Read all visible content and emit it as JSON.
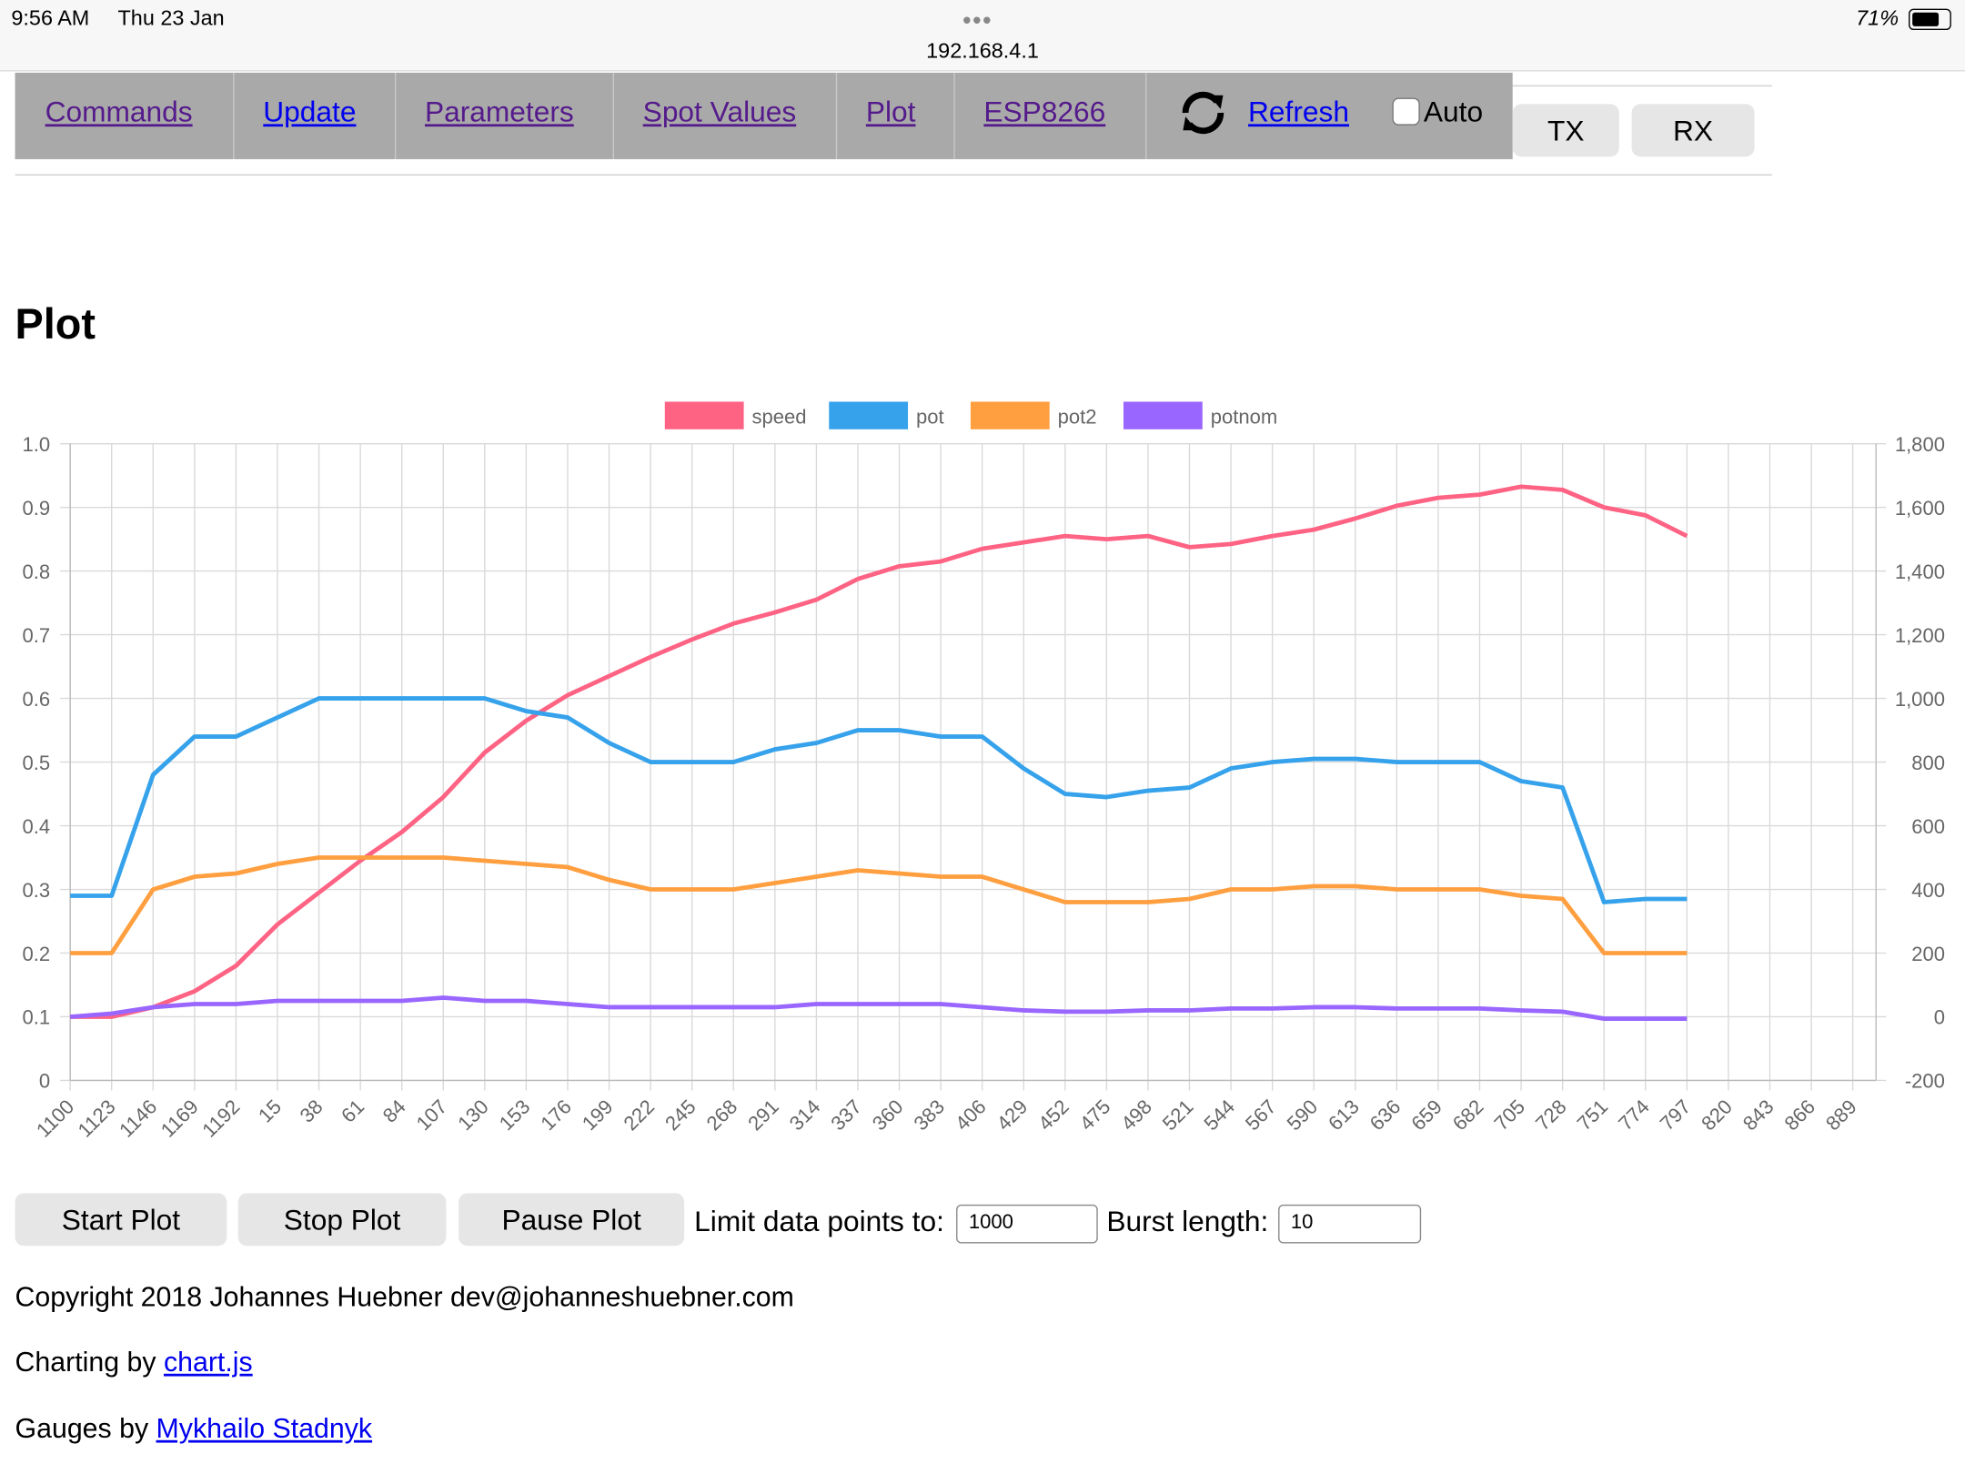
{
  "status_bar": {
    "time": "9:56 AM",
    "date": "Thu 23 Jan",
    "url": "192.168.4.1",
    "battery": "71%"
  },
  "nav": {
    "items": [
      "Commands",
      "Update",
      "Parameters",
      "Spot Values",
      "Plot",
      "ESP8266"
    ],
    "refresh": "Refresh",
    "auto": "Auto",
    "tx": "TX",
    "rx": "RX"
  },
  "heading": "Plot",
  "chart_data": {
    "type": "line",
    "categories": [
      "1100",
      "1123",
      "1146",
      "1169",
      "1192",
      "15",
      "38",
      "61",
      "84",
      "107",
      "130",
      "153",
      "176",
      "199",
      "222",
      "245",
      "268",
      "291",
      "314",
      "337",
      "360",
      "383",
      "406",
      "429",
      "452",
      "475",
      "498",
      "521",
      "544",
      "567",
      "590",
      "613",
      "636",
      "659",
      "682",
      "705",
      "728",
      "751",
      "774",
      "797",
      "820",
      "843",
      "866",
      "889"
    ],
    "series": [
      {
        "name": "speed",
        "color": "#ff6384",
        "axis": "y2",
        "values": [
          0,
          0,
          30,
          80,
          160,
          290,
          390,
          490,
          580,
          690,
          830,
          930,
          1010,
          1070,
          1130,
          1185,
          1235,
          1270,
          1310,
          1375,
          1415,
          1430,
          1470,
          1490,
          1510,
          1500,
          1510,
          1475,
          1485,
          1510,
          1530,
          1565,
          1605,
          1630,
          1640,
          1665,
          1655,
          1600,
          1575,
          1510,
          null,
          null,
          null,
          null
        ]
      },
      {
        "name": "pot",
        "color": "#36a2eb",
        "values": [
          0.29,
          0.29,
          0.48,
          0.54,
          0.54,
          0.57,
          0.6,
          0.6,
          0.6,
          0.6,
          0.6,
          0.58,
          0.57,
          0.53,
          0.5,
          0.5,
          0.5,
          0.52,
          0.53,
          0.55,
          0.55,
          0.54,
          0.54,
          0.49,
          0.45,
          0.445,
          0.455,
          0.46,
          0.49,
          0.5,
          0.505,
          0.505,
          0.5,
          0.5,
          0.5,
          0.47,
          0.46,
          0.28,
          0.285,
          0.285,
          null,
          null,
          null,
          null
        ]
      },
      {
        "name": "pot2",
        "color": "#ff9f40",
        "values": [
          0.2,
          0.2,
          0.3,
          0.32,
          0.325,
          0.34,
          0.35,
          0.35,
          0.35,
          0.35,
          0.345,
          0.34,
          0.335,
          0.315,
          0.3,
          0.3,
          0.3,
          0.31,
          0.32,
          0.33,
          0.325,
          0.32,
          0.32,
          0.3,
          0.28,
          0.28,
          0.28,
          0.285,
          0.3,
          0.3,
          0.305,
          0.305,
          0.3,
          0.3,
          0.3,
          0.29,
          0.285,
          0.2,
          0.2,
          0.2,
          null,
          null,
          null,
          null
        ]
      },
      {
        "name": "potnom",
        "color": "#9966ff",
        "values": [
          0.1,
          0.105,
          0.115,
          0.12,
          0.12,
          0.125,
          0.125,
          0.125,
          0.125,
          0.13,
          0.125,
          0.125,
          0.12,
          0.115,
          0.115,
          0.115,
          0.115,
          0.115,
          0.12,
          0.12,
          0.12,
          0.12,
          0.115,
          0.11,
          0.108,
          0.108,
          0.11,
          0.11,
          0.113,
          0.113,
          0.115,
          0.115,
          0.113,
          0.113,
          0.113,
          0.11,
          0.108,
          0.097,
          0.097,
          0.097,
          null,
          null,
          null,
          null
        ]
      }
    ],
    "ylim": [
      0,
      1
    ],
    "yticks": [
      0,
      0.1,
      0.2,
      0.3,
      0.4,
      0.5,
      0.6,
      0.7,
      0.8,
      0.9,
      {
        "value": 1,
        "label": "1.0"
      }
    ],
    "y2lim": [
      -200,
      1800
    ],
    "y2ticks": [
      -200,
      0,
      200,
      400,
      600,
      800,
      {
        "value": 1000,
        "label": "1,000"
      },
      {
        "value": 1200,
        "label": "1,200"
      },
      {
        "value": 1400,
        "label": "1,400"
      },
      {
        "value": 1600,
        "label": "1,600"
      },
      {
        "value": 1800,
        "label": "1,800"
      }
    ],
    "grid": true
  },
  "controls": {
    "start": "Start Plot",
    "stop": "Stop Plot",
    "pause": "Pause Plot",
    "limit_label": "Limit data points to:",
    "limit_value": "1000",
    "burst_label": "Burst length:",
    "burst_value": "10"
  },
  "footer": {
    "copyright": "Copyright 2018 Johannes Huebner dev@johanneshuebner.com",
    "charting_prefix": "Charting by",
    "charting_link": "chart.js",
    "gauges_prefix": "Gauges by",
    "gauges_link": "Mykhailo Stadnyk"
  }
}
